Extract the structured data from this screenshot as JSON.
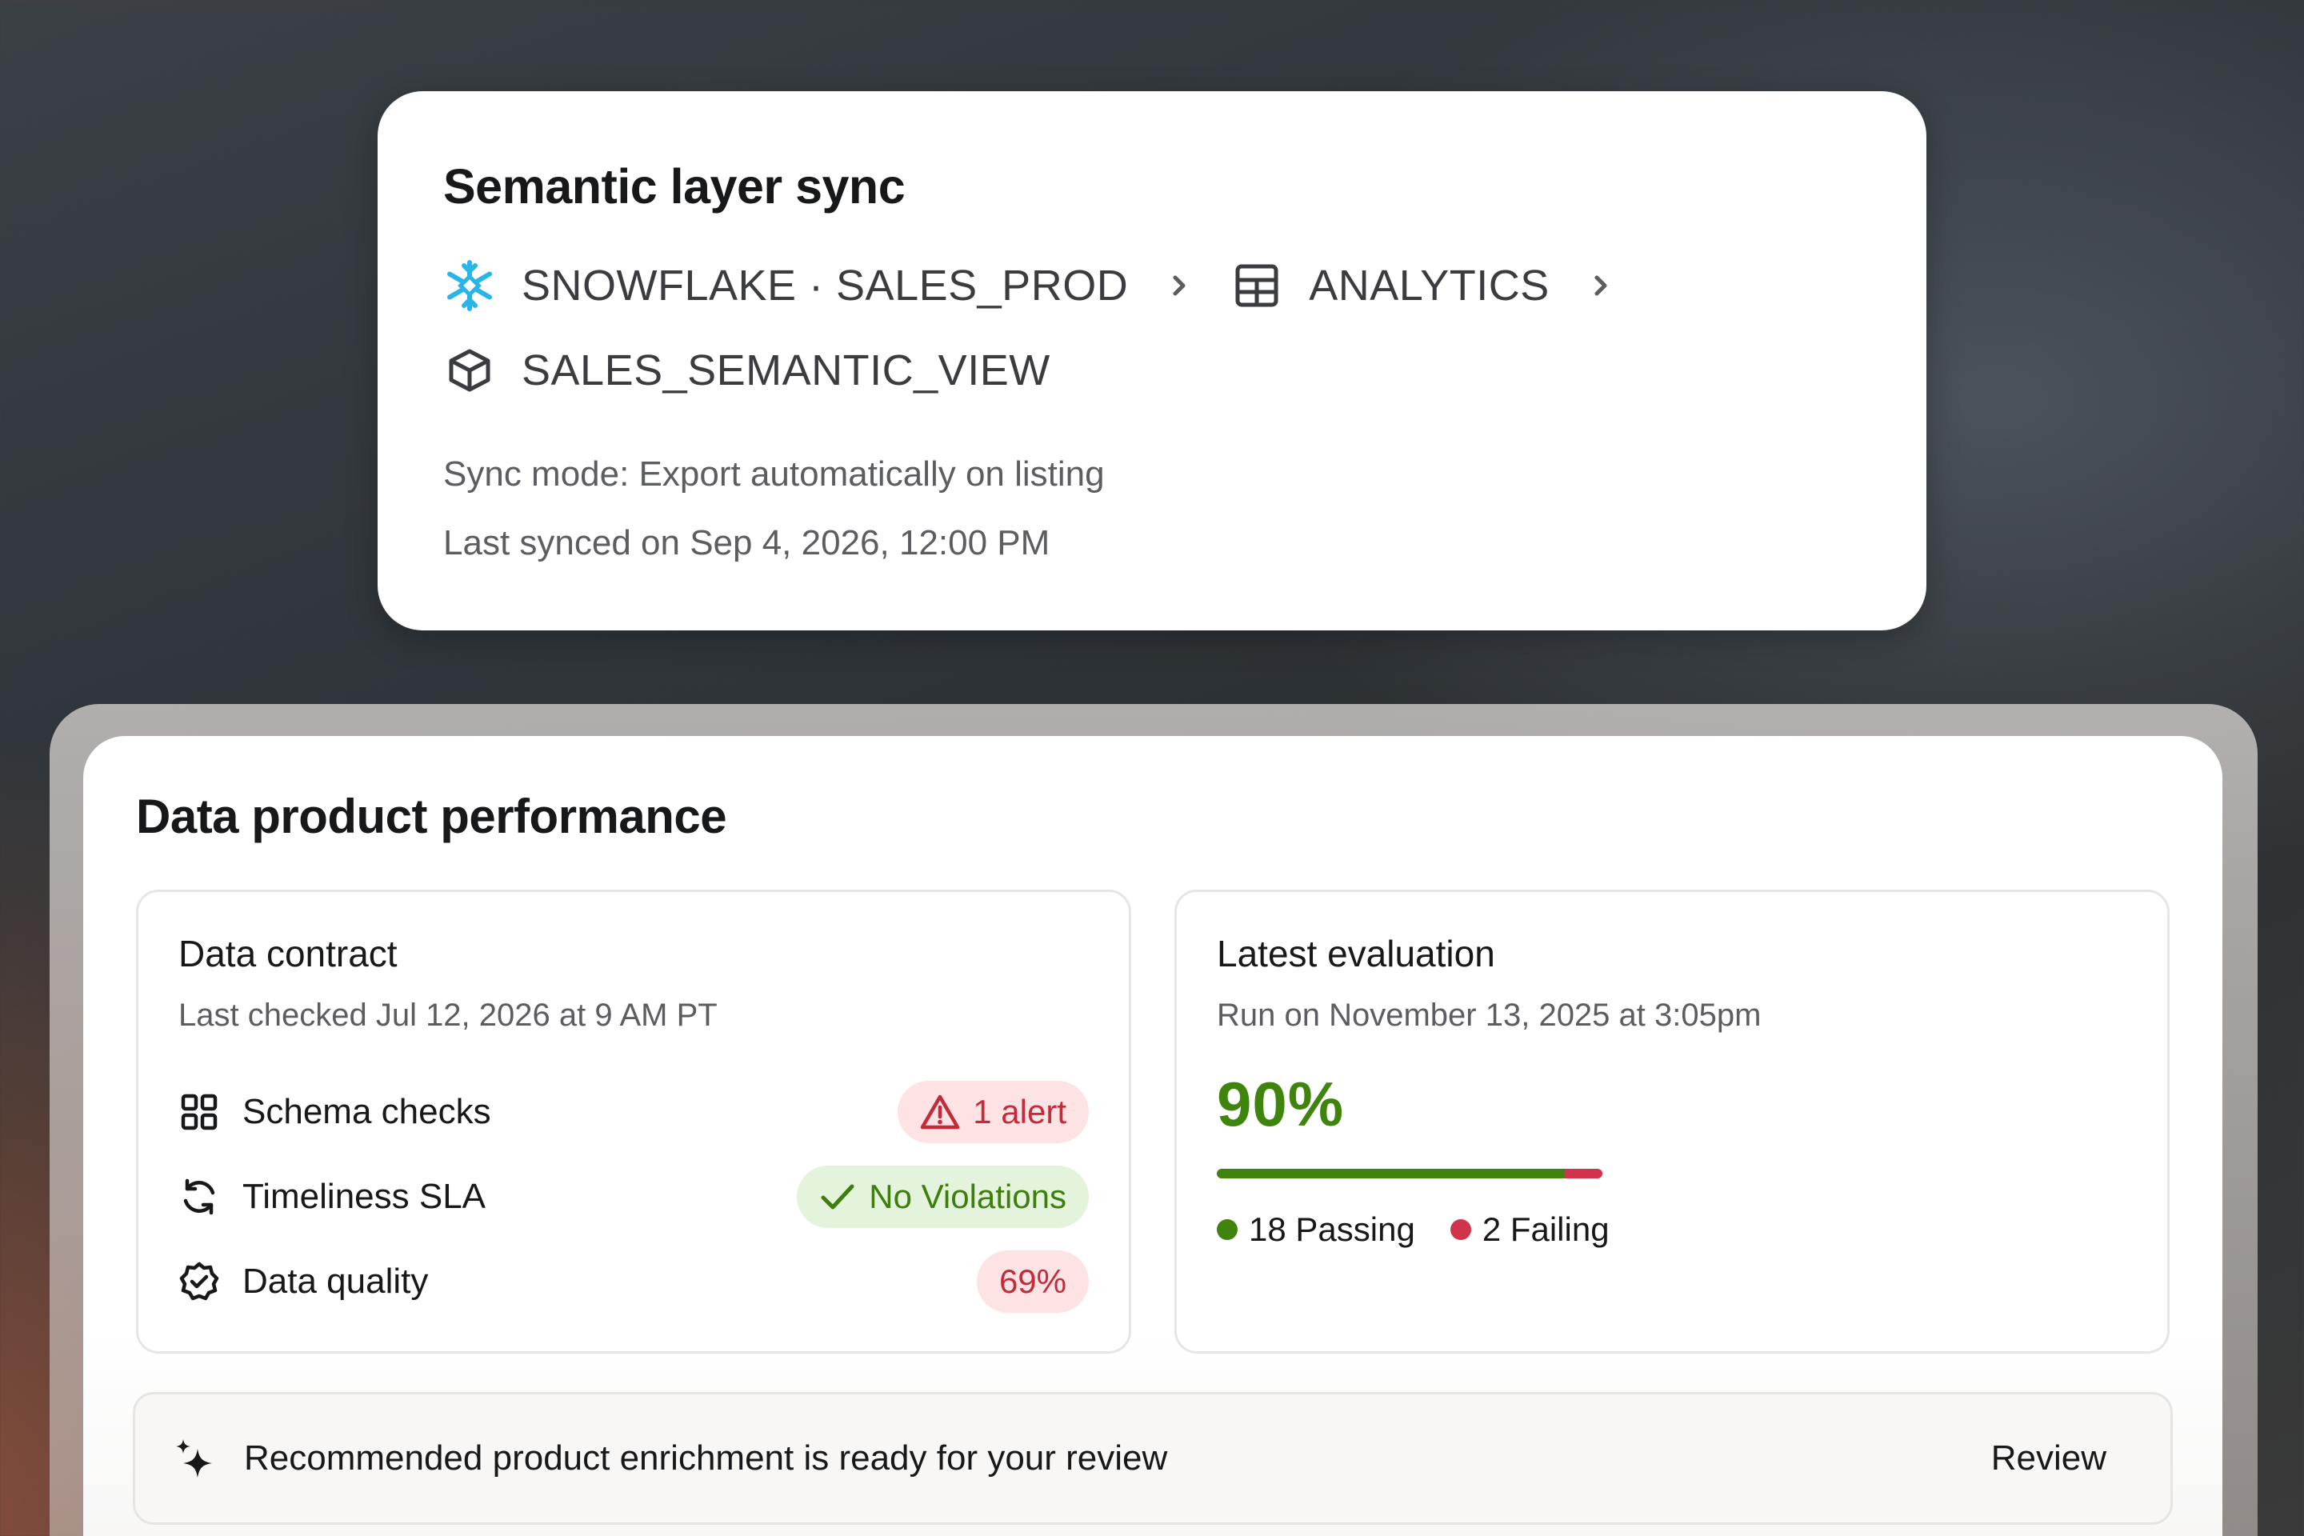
{
  "sync": {
    "title": "Semantic layer sync",
    "path": {
      "source": "SNOWFLAKE · SALES_PROD",
      "schema": "ANALYTICS",
      "view": "SALES_SEMANTIC_VIEW"
    },
    "icons": [
      "snowflake-icon",
      "table-icon",
      "cube-icon",
      "chevron-right-icon"
    ],
    "sync_mode": "Sync mode: Export automatically on listing",
    "last_synced": "Last synced on Sep 4, 2026, 12:00 PM"
  },
  "performance": {
    "title": "Data product performance",
    "contract": {
      "title": "Data contract",
      "last_checked": "Last checked Jul 12, 2026 at 9 AM PT",
      "checks": [
        {
          "label": "Schema checks",
          "badge": "1 alert",
          "status": "alert",
          "icon": "grid-icon"
        },
        {
          "label": "Timeliness SLA",
          "badge": "No Violations",
          "status": "ok",
          "icon": "refresh-icon"
        },
        {
          "label": "Data quality",
          "badge": "69%",
          "status": "alert",
          "icon": "badge-check-icon"
        }
      ]
    },
    "evaluation": {
      "title": "Latest evaluation",
      "run_on": "Run on November 13, 2025 at 3:05pm",
      "score": "90%",
      "passing": 18,
      "failing": 2,
      "passing_label": "18 Passing",
      "failing_label": "2 Failing"
    },
    "recommendation": {
      "text": "Recommended product enrichment is ready for your review",
      "action": "Review",
      "icon": "sparkle-icon"
    }
  },
  "colors": {
    "pass": "#3e840d",
    "fail": "#d1344a",
    "snowflake": "#29b5e8"
  }
}
